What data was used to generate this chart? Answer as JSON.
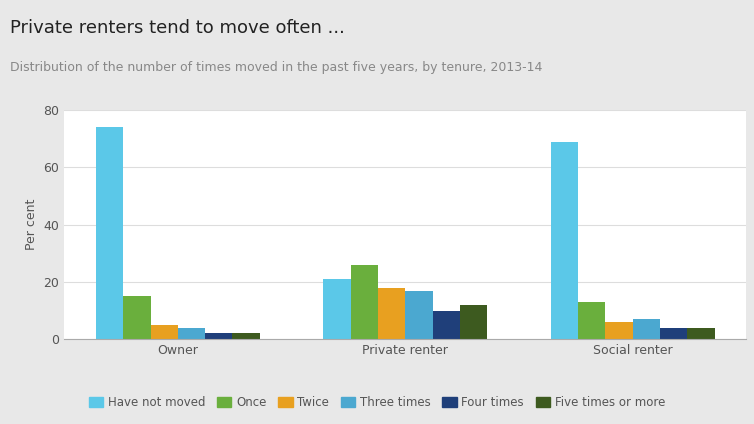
{
  "title": "Private renters tend to move often ...",
  "subtitle": "Distribution of the number of times moved in the past five years, by tenure, 2013-14",
  "categories": [
    "Owner",
    "Private renter",
    "Social renter"
  ],
  "series": {
    "Have not moved": [
      74,
      21,
      69
    ],
    "Once": [
      15,
      26,
      13
    ],
    "Twice": [
      5,
      18,
      6
    ],
    "Three times": [
      4,
      17,
      7
    ],
    "Four times": [
      2,
      10,
      4
    ],
    "Five times or more": [
      2,
      12,
      4
    ]
  },
  "colors": {
    "Have not moved": "#5BC8E8",
    "Once": "#6AAF3D",
    "Twice": "#E8A020",
    "Three times": "#4BA8D0",
    "Four times": "#1F3F7A",
    "Five times or more": "#3D5A1F"
  },
  "ylabel": "Per cent",
  "ylim": [
    0,
    80
  ],
  "yticks": [
    0,
    20,
    40,
    60,
    80
  ],
  "background_color": "#FFFFFF",
  "header_background": "#E8E8E8",
  "title_fontsize": 13,
  "subtitle_fontsize": 9,
  "legend_fontsize": 8.5,
  "axis_fontsize": 9
}
